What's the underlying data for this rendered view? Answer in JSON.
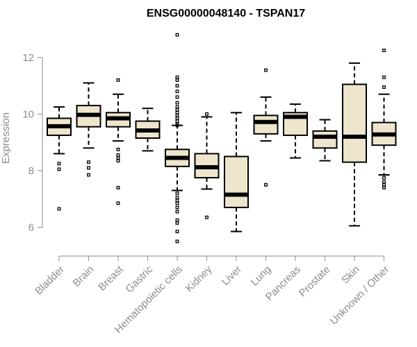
{
  "chart_data": {
    "type": "boxplot",
    "title": "ENSG00000048140 - TSPAN17",
    "xlabel": "",
    "ylabel": "Expression",
    "ylim": [
      5.3,
      13.0
    ],
    "yticks": [
      6,
      8,
      10,
      12
    ],
    "colors": {
      "box_fill": "#ede6cd",
      "stroke": "#000000",
      "axis": "#8c8c8c"
    },
    "categories": [
      "Bladder",
      "Brain",
      "Breast",
      "Gastric",
      "Hematopoietic cells",
      "Kidney",
      "Liver",
      "Lung",
      "Pancreas",
      "Prostate",
      "Skin",
      "Unknown / Other"
    ],
    "boxes": [
      {
        "name": "Bladder",
        "q1": 9.25,
        "median": 9.57,
        "q3": 9.85,
        "whisker_low": 8.6,
        "whisker_high": 10.25,
        "outliers": [
          8.25,
          8.05,
          6.65
        ]
      },
      {
        "name": "Brain",
        "q1": 9.55,
        "median": 9.97,
        "q3": 10.3,
        "whisker_low": 8.8,
        "whisker_high": 11.1,
        "outliers": [
          8.3,
          8.1,
          7.85
        ]
      },
      {
        "name": "Breast",
        "q1": 9.55,
        "median": 9.85,
        "q3": 10.05,
        "whisker_low": 9.05,
        "whisker_high": 10.7,
        "outliers": [
          11.2,
          8.75,
          8.55,
          8.45,
          8.35,
          7.4,
          6.85
        ]
      },
      {
        "name": "Gastric",
        "q1": 9.15,
        "median": 9.42,
        "q3": 9.75,
        "whisker_low": 8.7,
        "whisker_high": 10.2,
        "outliers": []
      },
      {
        "name": "Hematopoietic cells",
        "q1": 8.15,
        "median": 8.45,
        "q3": 8.75,
        "whisker_low": 7.3,
        "whisker_high": 9.6,
        "outliers": [
          12.8,
          11.3,
          11.2,
          11.0,
          10.8,
          10.6,
          10.4,
          10.25,
          10.15,
          10.05,
          9.95,
          9.85,
          9.75,
          9.65,
          9.6,
          7.2,
          7.05,
          6.95,
          6.85,
          6.7,
          6.55,
          6.25,
          6.15,
          5.85,
          5.5
        ]
      },
      {
        "name": "Kidney",
        "q1": 7.75,
        "median": 8.12,
        "q3": 8.6,
        "whisker_low": 7.35,
        "whisker_high": 9.9,
        "outliers": [
          10.0,
          6.35
        ]
      },
      {
        "name": "Liver",
        "q1": 6.7,
        "median": 7.15,
        "q3": 8.5,
        "whisker_low": 5.85,
        "whisker_high": 10.05,
        "outliers": []
      },
      {
        "name": "Lung",
        "q1": 9.3,
        "median": 9.72,
        "q3": 9.95,
        "whisker_low": 9.05,
        "whisker_high": 10.6,
        "outliers": [
          11.55,
          7.5
        ]
      },
      {
        "name": "Pancreas",
        "q1": 9.25,
        "median": 9.9,
        "q3": 10.05,
        "whisker_low": 8.45,
        "whisker_high": 10.35,
        "outliers": []
      },
      {
        "name": "Prostate",
        "q1": 8.8,
        "median": 9.2,
        "q3": 9.4,
        "whisker_low": 8.35,
        "whisker_high": 9.8,
        "outliers": []
      },
      {
        "name": "Skin",
        "q1": 8.3,
        "median": 9.2,
        "q3": 11.05,
        "whisker_low": 6.05,
        "whisker_high": 11.8,
        "outliers": []
      },
      {
        "name": "Unknown / Other",
        "q1": 8.9,
        "median": 9.28,
        "q3": 9.7,
        "whisker_low": 7.85,
        "whisker_high": 10.7,
        "outliers": [
          12.25,
          11.3,
          10.95,
          7.75,
          7.6,
          7.5,
          7.4
        ]
      }
    ]
  }
}
